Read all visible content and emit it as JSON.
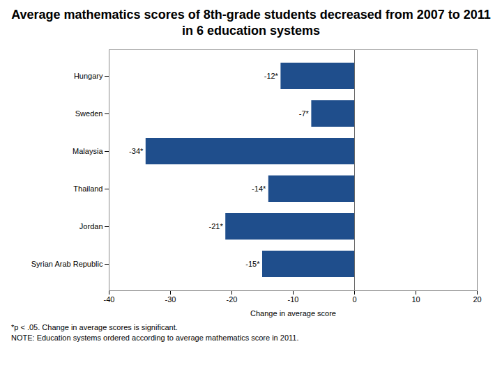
{
  "chart_data": {
    "type": "bar",
    "orientation": "horizontal",
    "title": "Average mathematics scores of 8th-grade students decreased from 2007 to 2011 in 6 education systems",
    "categories": [
      "Hungary",
      "Sweden",
      "Malaysia",
      "Thailand",
      "Jordan",
      "Syrian Arab Republic"
    ],
    "values": [
      -12,
      -7,
      -34,
      -14,
      -21,
      -15
    ],
    "value_labels": [
      "-12*",
      "-7*",
      "-34*",
      "-14*",
      "-21*",
      "-15*"
    ],
    "data_labels": true,
    "color": "#1F4E8C",
    "xlabel": "Change in average score",
    "xlim": [
      -40,
      20
    ],
    "xticks": [
      -40,
      -30,
      -20,
      -10,
      0,
      10,
      20
    ],
    "grid": false,
    "annotations": [
      "*p < .05. Change in average scores is significant.",
      "NOTE: Education systems ordered according to average mathematics score in 2011."
    ]
  }
}
